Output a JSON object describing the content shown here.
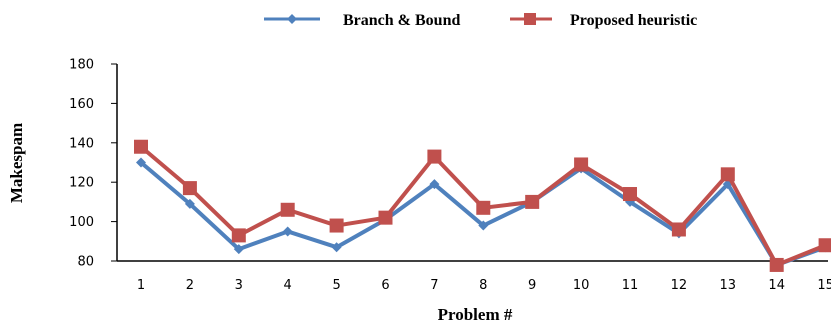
{
  "chart_data": {
    "type": "line",
    "title": "",
    "xlabel": "Problem #",
    "ylabel": "Makespam",
    "categories": [
      "1",
      "2",
      "3",
      "4",
      "5",
      "6",
      "7",
      "8",
      "9",
      "10",
      "11",
      "12",
      "13",
      "14",
      "15"
    ],
    "yticks": [
      "80",
      "100",
      "120",
      "140",
      "160",
      "180"
    ],
    "ylim": [
      80,
      180
    ],
    "grid": false,
    "legend_position": "top",
    "series": [
      {
        "name": "Branch & Bound",
        "values": [
          130,
          109,
          86,
          95,
          87,
          101,
          119,
          98,
          110,
          127,
          110,
          94,
          119,
          78,
          87
        ],
        "color": "#4f81bd",
        "marker": "diamond"
      },
      {
        "name": "Proposed heuristic",
        "values": [
          138,
          117,
          93,
          106,
          98,
          102,
          133,
          107,
          110,
          129,
          114,
          96,
          124,
          78,
          88
        ],
        "color": "#c0504d",
        "marker": "square"
      }
    ]
  }
}
